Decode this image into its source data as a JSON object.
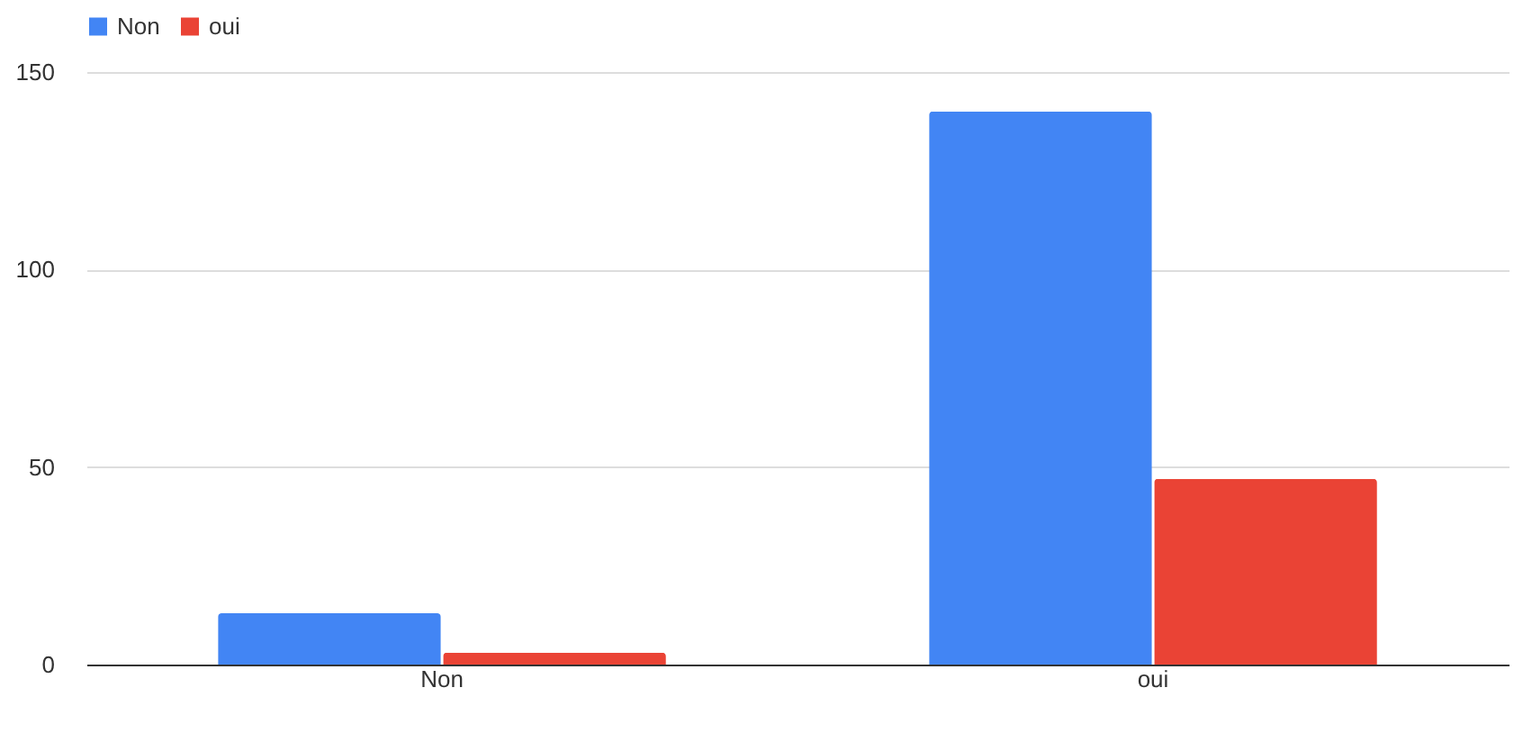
{
  "chart_data": {
    "type": "bar",
    "categories": [
      "Non",
      "oui"
    ],
    "series": [
      {
        "name": "Non",
        "color": "#4285f4",
        "values": [
          13,
          140
        ]
      },
      {
        "name": "oui",
        "color": "#ea4335",
        "values": [
          3,
          47
        ]
      }
    ],
    "ylim": [
      0,
      150
    ],
    "yticks": [
      0,
      50,
      100,
      150
    ],
    "grid": "y",
    "legend": "top"
  }
}
